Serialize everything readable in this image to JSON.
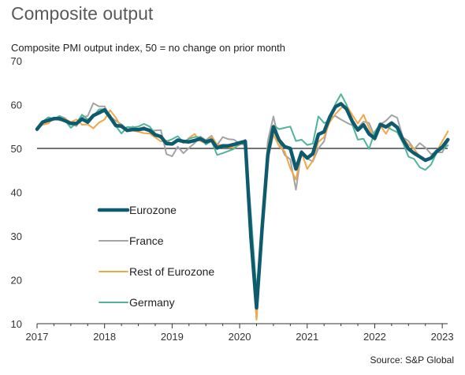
{
  "title": "Composite output",
  "source": "Source: S&P Global",
  "chart_data": {
    "type": "line",
    "subtitle": "Composite PMI output index, 50 = no change on prior month",
    "ylim": [
      10,
      70
    ],
    "yticks": [
      10,
      20,
      30,
      40,
      50,
      60,
      70
    ],
    "xlim": [
      2017,
      2023.08
    ],
    "xticks": [
      2017,
      2018,
      2019,
      2020,
      2021,
      2022,
      2023
    ],
    "reference_line": 50,
    "grid": false,
    "legend_placement": "lower-left",
    "colors": {
      "Eurozone": "#0e5a6e",
      "France": "#a3a3a3",
      "Rest of Eurozone": "#f0a848",
      "Germany": "#50b49a"
    },
    "start": "2017-01",
    "series": [
      {
        "name": "Eurozone",
        "values": [
          54.4,
          56.0,
          56.4,
          56.8,
          56.8,
          56.3,
          55.7,
          55.7,
          56.7,
          56.0,
          57.5,
          58.1,
          58.8,
          57.1,
          55.2,
          55.1,
          54.1,
          54.3,
          54.3,
          54.5,
          54.1,
          53.1,
          52.7,
          51.1,
          51.0,
          51.9,
          51.6,
          51.5,
          51.8,
          52.2,
          51.5,
          51.9,
          50.1,
          50.6,
          50.6,
          50.9,
          51.3,
          51.6,
          29.7,
          13.6,
          31.9,
          48.5,
          54.9,
          51.9,
          50.4,
          50.0,
          45.3,
          49.1,
          47.8,
          48.8,
          53.2,
          53.8,
          57.1,
          59.5,
          60.2,
          59.0,
          56.2,
          54.2,
          55.4,
          53.3,
          52.3,
          55.5,
          54.9,
          55.8,
          54.8,
          52.0,
          49.9,
          48.9,
          48.1,
          47.3,
          47.8,
          49.3,
          50.3,
          52.0
        ]
      },
      {
        "name": "France",
        "values": [
          54.1,
          55.9,
          56.8,
          56.6,
          57.4,
          56.9,
          55.6,
          55.1,
          57.1,
          57.4,
          60.3,
          59.6,
          59.6,
          57.3,
          56.3,
          55.5,
          54.2,
          55.0,
          54.4,
          54.9,
          54.0,
          54.1,
          54.2,
          48.7,
          48.2,
          50.4,
          48.9,
          50.1,
          51.2,
          52.7,
          51.9,
          52.9,
          50.8,
          52.6,
          52.1,
          52.0,
          51.1,
          52.0,
          28.9,
          11.1,
          32.1,
          51.7,
          57.3,
          51.6,
          48.5,
          47.5,
          40.6,
          49.5,
          47.7,
          47.0,
          50.0,
          51.6,
          57.0,
          57.4,
          56.6,
          55.9,
          55.3,
          54.7,
          56.1,
          55.8,
          52.7,
          55.5,
          56.3,
          57.6,
          57.0,
          52.5,
          51.7,
          49.8,
          51.2,
          50.2,
          48.7,
          49.1,
          49.1,
          51.7
        ]
      },
      {
        "name": "Rest of Eurozone",
        "values": [
          54.7,
          55.4,
          55.7,
          57.0,
          56.4,
          56.8,
          56.0,
          56.6,
          55.4,
          55.5,
          54.6,
          55.9,
          56.6,
          58.7,
          57.0,
          54.7,
          54.4,
          54.1,
          53.8,
          53.5,
          53.4,
          52.5,
          51.6,
          51.8,
          51.0,
          52.0,
          51.2,
          52.4,
          53.3,
          51.7,
          51.1,
          52.7,
          50.8,
          50.8,
          50.2,
          50.2,
          50.8,
          51.4,
          28.5,
          10.9,
          30.0,
          47.4,
          53.2,
          50.5,
          49.3,
          45.5,
          42.9,
          49.1,
          45.3,
          47.2,
          51.5,
          52.6,
          56.0,
          57.8,
          59.2,
          59.8,
          57.7,
          55.7,
          57.7,
          54.7,
          51.9,
          55.2,
          53.3,
          55.7,
          54.5,
          52.3,
          50.9,
          49.9,
          48.1,
          47.1,
          47.8,
          49.4,
          51.6,
          53.9
        ]
      },
      {
        "name": "Germany",
        "values": [
          54.8,
          56.1,
          57.1,
          56.7,
          57.4,
          56.4,
          54.7,
          55.8,
          57.7,
          56.6,
          57.3,
          58.9,
          59.0,
          57.6,
          55.1,
          53.4,
          54.9,
          54.8,
          55.0,
          55.6,
          55.0,
          53.4,
          52.3,
          51.6,
          52.1,
          52.8,
          51.4,
          52.2,
          52.6,
          52.6,
          50.9,
          51.7,
          48.5,
          48.9,
          49.4,
          49.9,
          51.2,
          50.7,
          35.0,
          17.4,
          32.3,
          47.0,
          55.3,
          54.4,
          54.7,
          55.0,
          51.7,
          52.0,
          50.8,
          51.1,
          57.3,
          55.8,
          56.2,
          60.1,
          62.4,
          60.0,
          55.5,
          52.0,
          52.2,
          49.9,
          53.8,
          55.6,
          55.1,
          54.3,
          53.7,
          51.3,
          48.1,
          47.6,
          45.7,
          45.1,
          46.3,
          49.0,
          49.9,
          50.7
        ]
      }
    ]
  }
}
